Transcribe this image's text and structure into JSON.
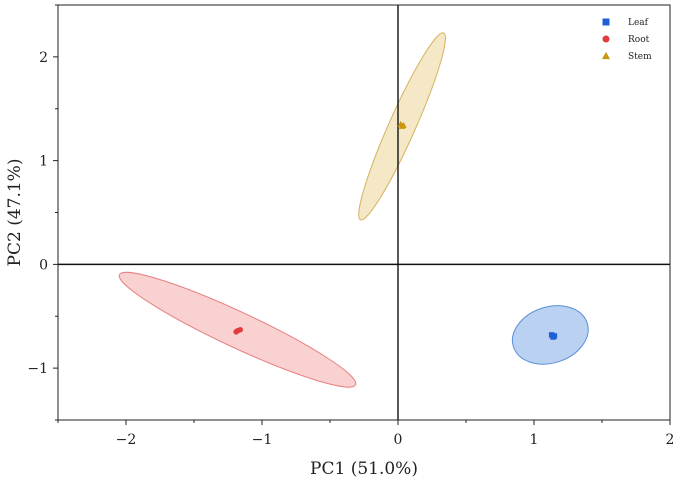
{
  "chart_data": {
    "type": "scatter",
    "xlabel": "PC1 (51.0%)",
    "ylabel": "PC2 (47.1%)",
    "xlim": [
      -2.5,
      2.0
    ],
    "ylim": [
      -1.5,
      2.5
    ],
    "xticks": [
      -2,
      -1,
      0,
      1,
      2
    ],
    "yticks": [
      -1,
      0,
      1,
      2
    ],
    "xtick_labels": [
      "−2",
      "−1",
      "0",
      "1",
      "2"
    ],
    "ytick_labels": [
      "−1",
      "0",
      "1",
      "2"
    ],
    "zero_lines": true,
    "grid": false,
    "legend_position": "top-right",
    "series": [
      {
        "name": "Leaf",
        "marker": "square",
        "color": "#1f5fd6",
        "fill": "#aac6ee",
        "stroke": "#5b8fd8",
        "points": [
          [
            1.13,
            -0.68
          ],
          [
            1.15,
            -0.69
          ],
          [
            1.14,
            -0.7
          ]
        ],
        "ellipse": {
          "cx": 1.12,
          "cy": -0.68,
          "rx": 0.285,
          "ry": 0.206,
          "angle": -18
        }
      },
      {
        "name": "Root",
        "marker": "circle",
        "color": "#e23b3b",
        "fill": "#f8c6c6",
        "stroke": "#e88080",
        "points": [
          [
            -1.18,
            -0.64
          ],
          [
            -1.16,
            -0.63
          ],
          [
            -1.19,
            -0.65
          ]
        ],
        "ellipse": {
          "cx": -1.18,
          "cy": -0.63,
          "rx": 0.958,
          "ry": 0.131,
          "angle": 25
        }
      },
      {
        "name": "Stem",
        "marker": "triangle",
        "color": "#c9960e",
        "fill": "#f2e2b8",
        "stroke": "#d6b25e",
        "points": [
          [
            0.03,
            1.33
          ],
          [
            0.02,
            1.35
          ],
          [
            0.04,
            1.34
          ]
        ],
        "ellipse": {
          "cx": 0.03,
          "cy": 1.33,
          "rx": 0.752,
          "ry": 0.097,
          "angle": -66
        }
      }
    ]
  }
}
